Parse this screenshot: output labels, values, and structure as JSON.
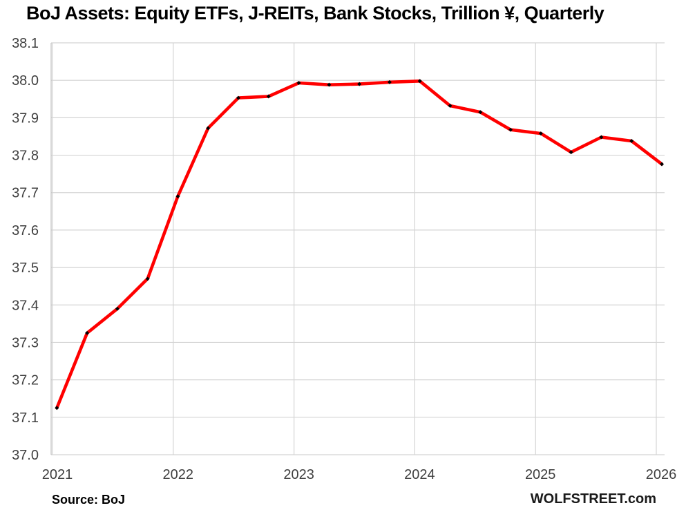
{
  "page": {
    "title": "BoJ Assets: Equity ETFs, J-REITs, Bank Stocks, Trillion ¥, Quarterly",
    "source_label": "Source: BoJ",
    "brand": "WOLFSTREET.com"
  },
  "chart_data": {
    "type": "line",
    "title": "BoJ Assets: Equity ETFs, J-REITs, Bank Stocks, Trillion ¥, Quarterly",
    "xlabel": "",
    "ylabel": "Trillion ¥",
    "categories": [
      "2021 Q1",
      "2021 Q2",
      "2021 Q3",
      "2021 Q4",
      "2022 Q1",
      "2022 Q2",
      "2022 Q3",
      "2022 Q4",
      "2023 Q1",
      "2023 Q2",
      "2023 Q3",
      "2023 Q4",
      "2024 Q1",
      "2024 Q2",
      "2024 Q3",
      "2024 Q4",
      "2025 Q1",
      "2025 Q2",
      "2025 Q3",
      "2025 Q4",
      "2026 Q1"
    ],
    "values": [
      37.125,
      37.325,
      37.39,
      37.47,
      37.69,
      37.872,
      37.953,
      37.957,
      37.993,
      37.988,
      37.99,
      37.995,
      37.998,
      37.932,
      37.915,
      37.868,
      37.858,
      37.808,
      37.848,
      37.838,
      37.776
    ],
    "x_tick_labels": [
      "2021",
      "2022",
      "2023",
      "2024",
      "2025",
      "2026"
    ],
    "y_tick_labels": [
      "38.1",
      "38.0",
      "37.9",
      "37.8",
      "37.7",
      "37.6",
      "37.5",
      "37.4",
      "37.3",
      "37.2",
      "37.1",
      "37.0"
    ],
    "ylim": [
      37.0,
      38.1
    ],
    "y_tick_step": 0.1,
    "grid": true,
    "legend": "none",
    "line_color": "#ff0000",
    "marker_color": "#000000",
    "gridline_color": "#d4d4d4",
    "tick_label_color": "#3f3f3f"
  }
}
